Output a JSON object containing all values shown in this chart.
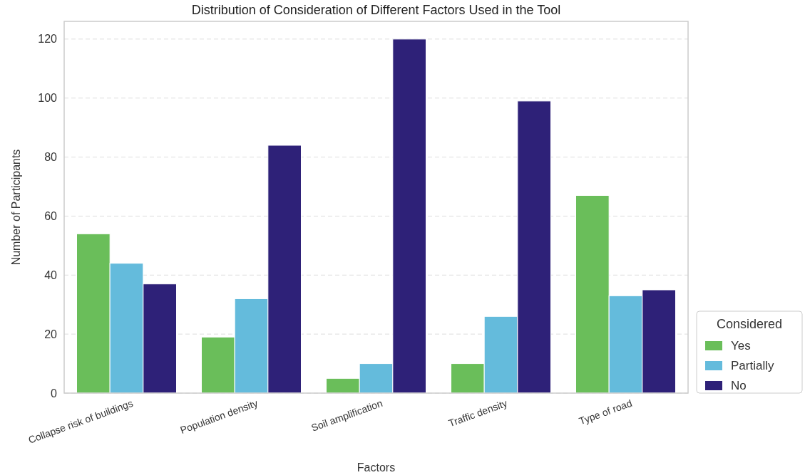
{
  "chart_data": {
    "type": "bar",
    "title": "Distribution of Consideration of Different Factors Used in the Tool",
    "xlabel": "Factors",
    "ylabel": "Number of Participants",
    "legend_title": "Considered",
    "categories": [
      "Collapse risk of buildings",
      "Population density",
      "Soil amplification",
      "Traffic density",
      "Type of road"
    ],
    "series": [
      {
        "name": "Yes",
        "color": "#6abe5a",
        "values": [
          54,
          19,
          5,
          10,
          67
        ]
      },
      {
        "name": "Partially",
        "color": "#64bbdc",
        "values": [
          44,
          32,
          10,
          26,
          33
        ]
      },
      {
        "name": "No",
        "color": "#2e2178",
        "values": [
          37,
          84,
          120,
          99,
          35
        ]
      }
    ],
    "ylim": [
      0,
      126
    ],
    "yticks": [
      0,
      20,
      40,
      60,
      80,
      100,
      120
    ],
    "grid": "y",
    "legend": "right"
  }
}
